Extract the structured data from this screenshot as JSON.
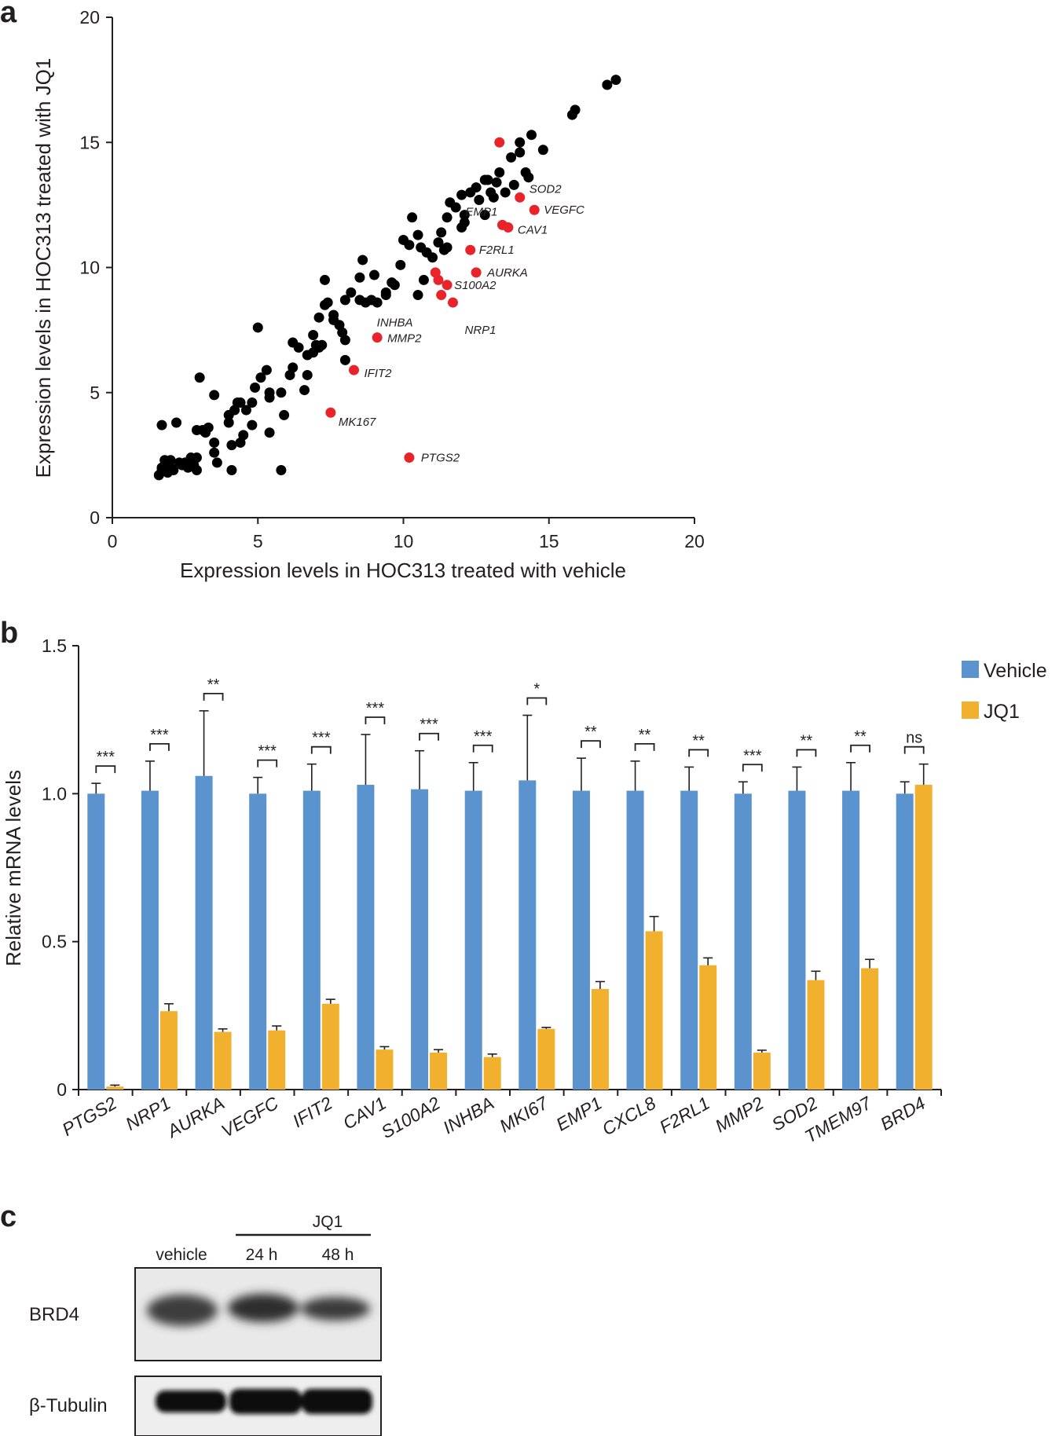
{
  "panels": {
    "a": "a",
    "b": "b",
    "c": "c"
  },
  "chart_data": [
    {
      "type": "scatter",
      "panel": "a",
      "xlabel": "Expression levels in HOC313 treated with vehicle",
      "ylabel": "Expression levels in HOC313 treated with JQ1",
      "xlim": [
        0,
        20
      ],
      "ylim": [
        0,
        20
      ],
      "xticks": [
        "0",
        "5",
        "10",
        "15",
        "20"
      ],
      "yticks": [
        "0",
        "5",
        "10",
        "15",
        "20"
      ],
      "colors": {
        "unchanged": "#000000",
        "highlighted": "#e8232a"
      },
      "highlighted": [
        {
          "gene": "SOD2",
          "x": 14.0,
          "y": 12.8
        },
        {
          "gene": "VEGFC",
          "x": 14.5,
          "y": 12.3
        },
        {
          "gene": "EMP1",
          "x": 13.4,
          "y": 11.7
        },
        {
          "gene": "CAV1",
          "x": 13.6,
          "y": 11.6
        },
        {
          "gene": "F2RL1",
          "x": 12.3,
          "y": 10.7
        },
        {
          "gene": "AURKA",
          "x": 12.5,
          "y": 9.8
        },
        {
          "gene": "S100A2",
          "x": 11.5,
          "y": 9.3
        },
        {
          "gene": "INHBA",
          "x": 11.3,
          "y": 8.9
        },
        {
          "gene": "NRP1",
          "x": 11.7,
          "y": 8.6
        },
        {
          "gene": "MMP2",
          "x": 9.1,
          "y": 7.2
        },
        {
          "gene": "IFIT2",
          "x": 8.3,
          "y": 5.9
        },
        {
          "gene": "MK167",
          "x": 7.5,
          "y": 4.2
        },
        {
          "gene": "PTGS2",
          "x": 10.2,
          "y": 2.4
        }
      ],
      "highlighted_unlabeled": [
        {
          "x": 13.3,
          "y": 15.0
        },
        {
          "x": 11.1,
          "y": 9.8
        },
        {
          "x": 11.2,
          "y": 9.5
        }
      ],
      "points": [
        [
          1.6,
          1.7
        ],
        [
          1.7,
          1.9
        ],
        [
          1.8,
          2.1
        ],
        [
          1.9,
          1.8
        ],
        [
          2.0,
          2.0
        ],
        [
          2.1,
          1.9
        ],
        [
          1.7,
          2.0
        ],
        [
          2.3,
          2.2
        ],
        [
          2.5,
          2.2
        ],
        [
          2.6,
          2.0
        ],
        [
          1.8,
          2.3
        ],
        [
          2.0,
          2.3
        ],
        [
          2.8,
          2.1
        ],
        [
          2.9,
          2.4
        ],
        [
          2.9,
          1.9
        ],
        [
          1.7,
          3.7
        ],
        [
          2.2,
          3.8
        ],
        [
          2.9,
          3.5
        ],
        [
          3.1,
          3.5
        ],
        [
          3.2,
          3.4
        ],
        [
          3.0,
          5.6
        ],
        [
          3.5,
          4.9
        ],
        [
          3.5,
          3.0
        ],
        [
          3.5,
          2.6
        ],
        [
          3.6,
          2.2
        ],
        [
          4.0,
          3.8
        ],
        [
          4.2,
          4.3
        ],
        [
          4.3,
          4.6
        ],
        [
          4.4,
          4.6
        ],
        [
          4.6,
          4.3
        ],
        [
          4.1,
          2.9
        ],
        [
          4.1,
          1.9
        ],
        [
          4.4,
          3.0
        ],
        [
          4.5,
          3.3
        ],
        [
          4.8,
          3.7
        ],
        [
          4.9,
          5.2
        ],
        [
          5.0,
          7.6
        ],
        [
          5.1,
          5.6
        ],
        [
          5.3,
          5.9
        ],
        [
          5.4,
          4.8
        ],
        [
          5.4,
          3.4
        ],
        [
          5.8,
          5.0
        ],
        [
          5.9,
          4.1
        ],
        [
          6.1,
          5.7
        ],
        [
          5.8,
          1.9
        ],
        [
          6.2,
          7.0
        ],
        [
          6.4,
          6.8
        ],
        [
          6.6,
          5.1
        ],
        [
          6.7,
          6.5
        ],
        [
          6.7,
          5.7
        ],
        [
          6.9,
          7.3
        ],
        [
          7.0,
          6.9
        ],
        [
          7.1,
          6.8
        ],
        [
          7.1,
          8.0
        ],
        [
          7.3,
          8.5
        ],
        [
          7.3,
          9.5
        ],
        [
          7.4,
          8.6
        ],
        [
          7.2,
          6.9
        ],
        [
          7.6,
          7.9
        ],
        [
          7.6,
          8.1
        ],
        [
          7.8,
          7.7
        ],
        [
          8.0,
          6.3
        ],
        [
          8.0,
          7.1
        ],
        [
          8.0,
          8.7
        ],
        [
          8.2,
          9.0
        ],
        [
          8.5,
          8.7
        ],
        [
          8.5,
          9.6
        ],
        [
          8.6,
          10.3
        ],
        [
          8.9,
          8.7
        ],
        [
          9.0,
          9.7
        ],
        [
          9.1,
          8.6
        ],
        [
          9.4,
          9.0
        ],
        [
          9.4,
          8.9
        ],
        [
          9.6,
          9.4
        ],
        [
          9.9,
          10.1
        ],
        [
          10.0,
          11.1
        ],
        [
          10.3,
          12.0
        ],
        [
          10.5,
          11.3
        ],
        [
          10.6,
          10.8
        ],
        [
          10.5,
          8.9
        ],
        [
          10.7,
          9.5
        ],
        [
          10.8,
          10.6
        ],
        [
          11.0,
          10.4
        ],
        [
          11.2,
          11.0
        ],
        [
          11.3,
          11.4
        ],
        [
          11.4,
          10.7
        ],
        [
          11.5,
          10.8
        ],
        [
          11.5,
          12.0
        ],
        [
          11.6,
          12.6
        ],
        [
          11.8,
          12.4
        ],
        [
          12.0,
          11.6
        ],
        [
          12.1,
          12.1
        ],
        [
          12.0,
          12.9
        ],
        [
          12.3,
          13.0
        ],
        [
          12.5,
          13.2
        ],
        [
          12.6,
          12.7
        ],
        [
          12.8,
          12.1
        ],
        [
          12.8,
          13.5
        ],
        [
          13.0,
          13.0
        ],
        [
          13.1,
          12.8
        ],
        [
          13.2,
          13.4
        ],
        [
          13.3,
          13.8
        ],
        [
          13.5,
          13.0
        ],
        [
          13.7,
          14.4
        ],
        [
          13.8,
          13.3
        ],
        [
          14.0,
          14.6
        ],
        [
          14.2,
          13.8
        ],
        [
          14.3,
          13.6
        ],
        [
          14.4,
          15.3
        ],
        [
          14.8,
          14.7
        ],
        [
          15.8,
          16.1
        ],
        [
          15.9,
          16.3
        ],
        [
          17.0,
          17.3
        ],
        [
          17.3,
          17.5
        ],
        [
          14.0,
          15.0
        ],
        [
          12.9,
          13.5
        ],
        [
          12.1,
          11.8
        ],
        [
          10.2,
          10.9
        ],
        [
          9.7,
          9.3
        ],
        [
          8.7,
          8.6
        ],
        [
          7.9,
          7.4
        ],
        [
          6.9,
          6.6
        ],
        [
          6.2,
          6.0
        ],
        [
          5.4,
          5.0
        ],
        [
          4.8,
          4.6
        ],
        [
          4.0,
          4.1
        ],
        [
          3.3,
          3.6
        ],
        [
          2.4,
          2.1
        ],
        [
          1.9,
          1.9
        ],
        [
          2.7,
          2.4
        ]
      ]
    },
    {
      "type": "bar",
      "panel": "b",
      "ylabel": "Relative mRNA levels",
      "ylim": [
        0,
        1.5
      ],
      "yticks": [
        "0",
        "0.5",
        "1.0",
        "1.5"
      ],
      "categories": [
        "PTGS2",
        "NRP1",
        "AURKA",
        "VEGFC",
        "IFIT2",
        "CAV1",
        "S100A2",
        "INHBA",
        "MKI67",
        "EMP1",
        "CXCL8",
        "F2RL1",
        "MMP2",
        "SOD2",
        "TMEM97",
        "BRD4"
      ],
      "series": [
        {
          "name": "Vehicle",
          "color": "#5b93cf",
          "values": [
            1.0,
            1.01,
            1.06,
            1.0,
            1.01,
            1.03,
            1.015,
            1.01,
            1.045,
            1.01,
            1.01,
            1.01,
            1.0,
            1.01,
            1.01,
            1.0
          ],
          "errors": [
            0.035,
            0.1,
            0.22,
            0.055,
            0.09,
            0.17,
            0.13,
            0.095,
            0.22,
            0.11,
            0.1,
            0.08,
            0.04,
            0.08,
            0.095,
            0.04
          ]
        },
        {
          "name": "JQ1",
          "color": "#f1b12e",
          "values": [
            0.01,
            0.265,
            0.195,
            0.2,
            0.29,
            0.135,
            0.125,
            0.11,
            0.205,
            0.34,
            0.535,
            0.42,
            0.125,
            0.37,
            0.41,
            1.03
          ],
          "errors": [
            0.005,
            0.025,
            0.01,
            0.015,
            0.015,
            0.01,
            0.01,
            0.01,
            0.005,
            0.025,
            0.05,
            0.025,
            0.008,
            0.03,
            0.03,
            0.07
          ]
        }
      ],
      "significance": [
        "***",
        "***",
        "**",
        "***",
        "***",
        "***",
        "***",
        "***",
        "*",
        "**",
        "**",
        "**",
        "***",
        "**",
        "**",
        "ns"
      ],
      "legend": [
        "Vehicle",
        "JQ1"
      ]
    }
  ],
  "blot": {
    "group_label": "JQ1",
    "lanes": [
      "vehicle",
      "24 h",
      "48 h"
    ],
    "rows": [
      "BRD4",
      "β-Tubulin"
    ]
  }
}
